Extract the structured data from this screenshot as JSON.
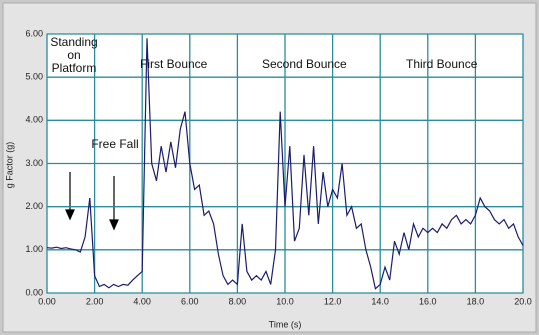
{
  "chart_data": {
    "type": "line",
    "x_label": "Time (s)",
    "y_label": "g Factor (g)",
    "annotations": [
      "Standing on Platform",
      "Free Fall",
      "First Bounce",
      "Second Bounce",
      "Third Bounce"
    ],
    "color": "#1c1c6e",
    "grid": true,
    "grid_color": "#2a8c9c",
    "xlim": [
      0,
      20
    ],
    "ylim": [
      0,
      6
    ],
    "xticks": [
      {
        "value": 0,
        "label": "0.00"
      },
      {
        "value": 2,
        "label": "2.00"
      },
      {
        "value": 4,
        "label": "4.00"
      },
      {
        "value": 6,
        "label": "6.00"
      },
      {
        "value": 8,
        "label": "8.00"
      },
      {
        "value": 10,
        "label": "10.0"
      },
      {
        "value": 12,
        "label": "12.0"
      },
      {
        "value": 14,
        "label": "14.0"
      },
      {
        "value": 16,
        "label": "16.0"
      },
      {
        "value": 18,
        "label": "18.0"
      },
      {
        "value": 20,
        "label": "20.0"
      }
    ],
    "yticks": [
      {
        "value": 0,
        "label": "0.00"
      },
      {
        "value": 1,
        "label": "1.00"
      },
      {
        "value": 2,
        "label": "2.00"
      },
      {
        "value": 3,
        "label": "3.00"
      },
      {
        "value": 4,
        "label": "4.00"
      },
      {
        "value": 5,
        "label": "5.00"
      },
      {
        "value": 6,
        "label": "6.00"
      }
    ],
    "x": [
      0,
      0.2,
      0.4,
      0.6,
      0.8,
      1,
      1.2,
      1.4,
      1.6,
      1.8,
      2,
      2.2,
      2.4,
      2.6,
      2.8,
      3,
      3.2,
      3.4,
      3.6,
      3.8,
      4,
      4.2,
      4.4,
      4.6,
      4.8,
      5,
      5.2,
      5.4,
      5.6,
      5.8,
      6,
      6.2,
      6.4,
      6.6,
      6.8,
      7,
      7.2,
      7.4,
      7.6,
      7.8,
      8,
      8.2,
      8.4,
      8.6,
      8.8,
      9,
      9.2,
      9.4,
      9.6,
      9.8,
      10,
      10.2,
      10.4,
      10.6,
      10.8,
      11,
      11.2,
      11.4,
      11.6,
      11.8,
      12,
      12.2,
      12.4,
      12.6,
      12.8,
      13,
      13.2,
      13.4,
      13.6,
      13.8,
      14,
      14.2,
      14.4,
      14.6,
      14.8,
      15,
      15.2,
      15.4,
      15.6,
      15.8,
      16,
      16.2,
      16.4,
      16.6,
      16.8,
      17,
      17.2,
      17.4,
      17.6,
      17.8,
      18,
      18.2,
      18.4,
      18.6,
      18.8,
      19,
      19.2,
      19.4,
      19.6,
      19.8,
      20
    ],
    "values": [
      1.05,
      1.04,
      1.06,
      1.03,
      1.05,
      1.02,
      1.0,
      0.95,
      1.3,
      2.2,
      0.4,
      0.15,
      0.2,
      0.12,
      0.2,
      0.15,
      0.2,
      0.18,
      0.3,
      0.4,
      0.5,
      5.9,
      3.0,
      2.6,
      3.4,
      2.8,
      3.5,
      2.9,
      3.8,
      4.2,
      3.0,
      2.4,
      2.5,
      1.8,
      1.9,
      1.6,
      0.9,
      0.4,
      0.2,
      0.3,
      0.2,
      1.6,
      0.5,
      0.3,
      0.4,
      0.3,
      0.5,
      0.2,
      1.0,
      4.2,
      2.0,
      3.4,
      1.2,
      1.5,
      3.2,
      1.8,
      3.4,
      1.6,
      2.8,
      2.0,
      2.4,
      2.2,
      3.0,
      1.8,
      2.0,
      1.5,
      1.6,
      1.0,
      0.6,
      0.1,
      0.2,
      0.6,
      0.3,
      1.2,
      0.9,
      1.4,
      1.0,
      1.6,
      1.3,
      1.5,
      1.4,
      1.5,
      1.4,
      1.6,
      1.5,
      1.7,
      1.8,
      1.6,
      1.7,
      1.6,
      1.8,
      2.2,
      2.0,
      1.9,
      1.7,
      1.6,
      1.7,
      1.5,
      1.6,
      1.3,
      1.1
    ]
  }
}
